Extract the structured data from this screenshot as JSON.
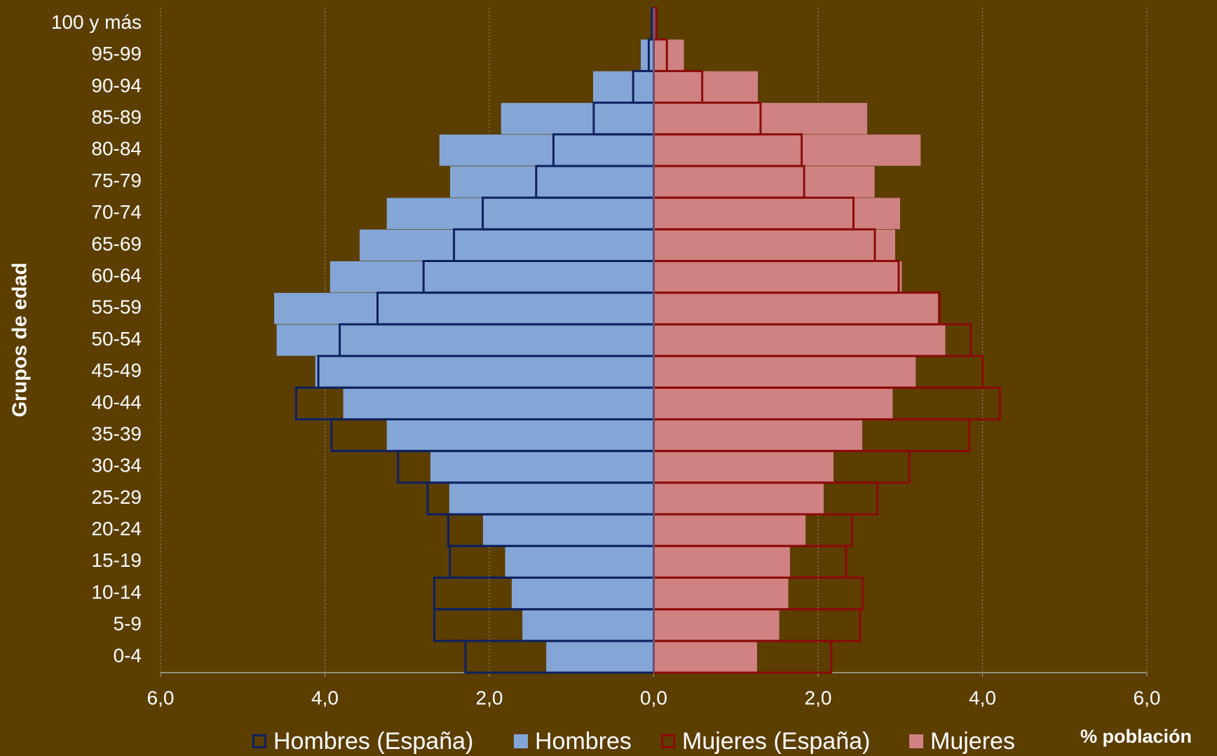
{
  "chart_data": {
    "type": "pyramid",
    "categories": [
      "0-4",
      "5-9",
      "10-14",
      "15-19",
      "20-24",
      "25-29",
      "30-34",
      "35-39",
      "40-44",
      "45-49",
      "50-54",
      "55-59",
      "60-64",
      "65-69",
      "70-74",
      "75-79",
      "80-84",
      "85-89",
      "90-94",
      "95-99",
      "100 y más"
    ],
    "y_label": "Grupos de edad",
    "x_label": "% población",
    "xlim": [
      -6,
      6
    ],
    "xticks": [
      {
        "value": -6,
        "label": "6,0"
      },
      {
        "value": -4,
        "label": "4,0"
      },
      {
        "value": -2,
        "label": "2,0"
      },
      {
        "value": 0,
        "label": "0,0"
      },
      {
        "value": 2,
        "label": "2,0"
      },
      {
        "value": 4,
        "label": "4,0"
      },
      {
        "value": 6,
        "label": "6,0"
      }
    ],
    "grid": true,
    "legend": "bottom",
    "series": [
      {
        "name": "Hombres (España)",
        "color": "#0d2160",
        "style": "outline",
        "side": "left",
        "values": [
          2.29,
          2.67,
          2.67,
          2.48,
          2.5,
          2.75,
          3.11,
          3.92,
          4.35,
          4.08,
          3.82,
          3.36,
          2.8,
          2.43,
          2.08,
          1.43,
          1.22,
          0.73,
          0.25,
          0.06,
          0.02
        ]
      },
      {
        "name": "Hombres",
        "color": "#84a6d6",
        "style": "fill",
        "side": "left",
        "values": [
          1.31,
          1.6,
          1.73,
          1.81,
          2.08,
          2.49,
          2.72,
          3.25,
          3.78,
          4.12,
          4.59,
          4.62,
          3.94,
          3.58,
          3.25,
          2.48,
          2.61,
          1.86,
          0.74,
          0.16,
          0.01
        ]
      },
      {
        "name": "Mujeres (España)",
        "color": "#8b0a0a",
        "style": "outline",
        "side": "right",
        "values": [
          2.16,
          2.51,
          2.54,
          2.34,
          2.41,
          2.72,
          3.11,
          3.84,
          4.21,
          4.0,
          3.86,
          3.48,
          2.98,
          2.69,
          2.43,
          1.83,
          1.8,
          1.3,
          0.59,
          0.16,
          0.03
        ]
      },
      {
        "name": "Mujeres",
        "color": "#d08282",
        "style": "fill",
        "side": "right",
        "values": [
          1.26,
          1.53,
          1.64,
          1.66,
          1.85,
          2.07,
          2.19,
          2.54,
          2.91,
          3.19,
          3.55,
          3.46,
          3.02,
          2.94,
          3.0,
          2.69,
          3.25,
          2.6,
          1.27,
          0.37,
          0.03
        ]
      }
    ]
  }
}
